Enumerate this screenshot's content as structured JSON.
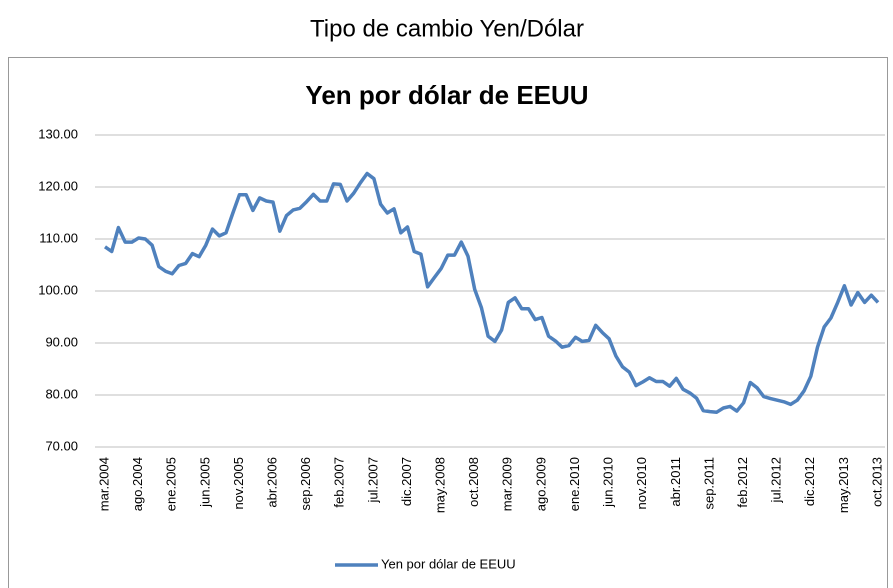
{
  "page_title": "Tipo de cambio Yen/Dólar",
  "chart_data": {
    "type": "line",
    "title": "Yen por dólar de EEUU",
    "categories": [
      "mar.2004",
      null,
      null,
      null,
      null,
      "ago.2004",
      null,
      null,
      null,
      null,
      "ene.2005",
      null,
      null,
      null,
      null,
      "jun.2005",
      null,
      null,
      null,
      null,
      "nov.2005",
      null,
      null,
      null,
      null,
      "abr.2006",
      null,
      null,
      null,
      null,
      "sep.2006",
      null,
      null,
      null,
      null,
      "feb.2007",
      null,
      null,
      null,
      null,
      "jul.2007",
      null,
      null,
      null,
      null,
      "dic.2007",
      null,
      null,
      null,
      null,
      "may.2008",
      null,
      null,
      null,
      null,
      "oct.2008",
      null,
      null,
      null,
      null,
      "mar.2009",
      null,
      null,
      null,
      null,
      "ago.2009",
      null,
      null,
      null,
      null,
      "ene.2010",
      null,
      null,
      null,
      null,
      "jun.2010",
      null,
      null,
      null,
      null,
      "nov.2010",
      null,
      null,
      null,
      null,
      "abr.2011",
      null,
      null,
      null,
      null,
      "sep.2011",
      null,
      null,
      null,
      null,
      "feb.2012",
      null,
      null,
      null,
      null,
      "jul.2012",
      null,
      null,
      null,
      null,
      "dic.2012",
      null,
      null,
      null,
      null,
      "may.2013",
      null,
      null,
      null,
      null,
      "oct.2013"
    ],
    "series": [
      {
        "name": "Yen por dólar de EEUU",
        "color": "#4f81bd",
        "values": [
          108.5,
          107.6,
          112.2,
          109.4,
          109.4,
          110.2,
          110.0,
          108.8,
          104.7,
          103.8,
          103.3,
          104.9,
          105.3,
          107.2,
          106.6,
          108.8,
          111.9,
          110.6,
          111.2,
          114.9,
          118.5,
          118.5,
          115.5,
          117.9,
          117.3,
          117.1,
          111.5,
          114.5,
          115.6,
          115.9,
          117.2,
          118.6,
          117.3,
          117.3,
          120.6,
          120.5,
          117.3,
          118.8,
          120.8,
          122.6,
          121.6,
          116.7,
          115.0,
          115.8,
          111.2,
          112.3,
          107.6,
          107.1,
          100.8,
          102.6,
          104.3,
          106.9,
          106.9,
          109.4,
          106.7,
          100.3,
          96.8,
          91.3,
          90.3,
          92.5,
          97.8,
          98.7,
          96.6,
          96.6,
          94.5,
          94.9,
          91.3,
          90.4,
          89.2,
          89.5,
          91.1,
          90.3,
          90.5,
          93.4,
          92.0,
          90.8,
          87.5,
          85.4,
          84.4,
          81.8,
          82.5,
          83.3,
          82.6,
          82.6,
          81.7,
          83.2,
          81.1,
          80.4,
          79.4,
          77.0,
          76.8,
          76.7,
          77.5,
          77.8,
          76.9,
          78.5,
          82.4,
          81.4,
          79.7,
          79.3,
          79.0,
          78.7,
          78.2,
          79.0,
          80.8,
          83.6,
          89.2,
          93.1,
          94.8,
          97.8,
          101.0,
          97.3,
          99.7,
          97.8,
          99.2,
          97.8
        ]
      }
    ],
    "ylim": [
      70,
      130
    ],
    "yticks": [
      {
        "value": 70,
        "label": "70.00"
      },
      {
        "value": 80,
        "label": "80.00"
      },
      {
        "value": 90,
        "label": "90.00"
      },
      {
        "value": 100,
        "label": "100.00"
      },
      {
        "value": 110,
        "label": "110.00"
      },
      {
        "value": 120,
        "label": "120.00"
      },
      {
        "value": 130,
        "label": "130.00"
      }
    ],
    "grid": true,
    "legend": "bottom"
  }
}
